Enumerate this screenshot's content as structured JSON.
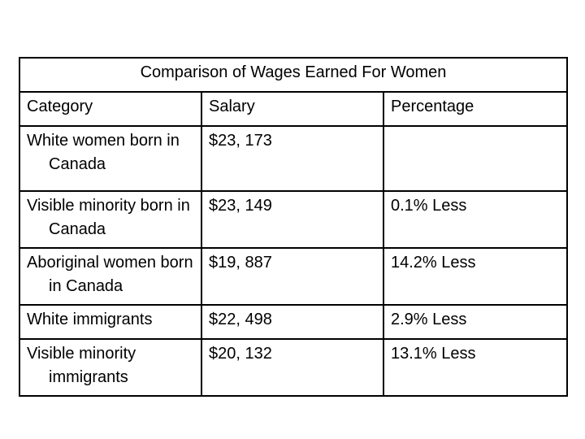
{
  "table": {
    "title": "Comparison of Wages Earned For Women",
    "headers": {
      "category": "Category",
      "salary": "Salary",
      "percentage": "Percentage"
    },
    "rows": [
      {
        "category": "White women  born in Canada",
        "salary": "$23, 173",
        "percentage": ""
      },
      {
        "category": "Visible minority born in Canada",
        "salary": "$23, 149",
        "percentage": "0.1% Less"
      },
      {
        "category": "Aboriginal women born in Canada",
        "salary": "$19, 887",
        "percentage": "14.2% Less"
      },
      {
        "category": "White immigrants",
        "salary": "$22, 498",
        "percentage": "2.9% Less"
      },
      {
        "category": "Visible minority immigrants",
        "salary": "$20, 132",
        "percentage": "13.1% Less"
      }
    ]
  }
}
